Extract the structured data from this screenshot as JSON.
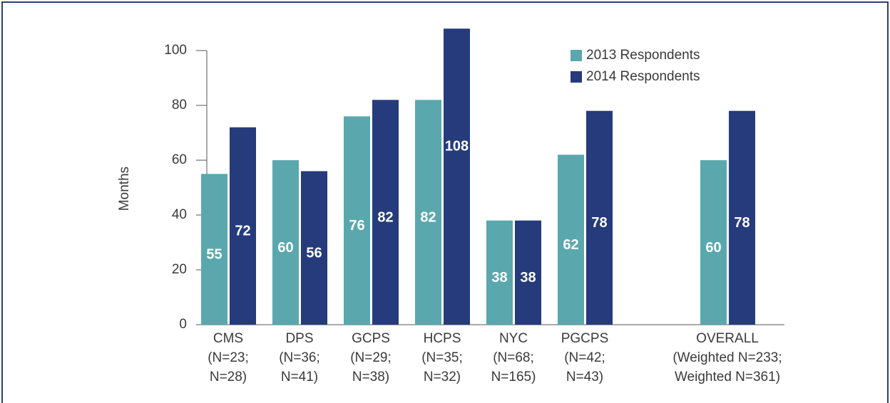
{
  "chart_data": {
    "type": "bar",
    "y_label": "Months",
    "categories": [
      [
        "CMS",
        "(N=23;",
        "N=28)"
      ],
      [
        "DPS",
        "(N=36;",
        "N=41)"
      ],
      [
        "GCPS",
        "(N=29;",
        "N=38)"
      ],
      [
        "HCPS",
        "(N=35;",
        "N=32)"
      ],
      [
        "NYC",
        "(N=68;",
        "N=165)"
      ],
      [
        "PGCPS",
        "(N=42;",
        "N=43)"
      ],
      null,
      [
        "OVERALL",
        "(Weighted N=233;",
        "Weighted N=361)"
      ]
    ],
    "series": [
      {
        "name": "2013 Respondents",
        "color": "#5aa8ae",
        "values": [
          55,
          60,
          76,
          82,
          38,
          62,
          null,
          60
        ]
      },
      {
        "name": "2014 Respondents",
        "color": "#253b7b",
        "values": [
          72,
          56,
          82,
          108,
          38,
          78,
          null,
          78
        ]
      }
    ],
    "ylim": [
      0,
      110
    ],
    "yticks": [
      0,
      20,
      40,
      60,
      80,
      100
    ],
    "legend": "top-right"
  }
}
